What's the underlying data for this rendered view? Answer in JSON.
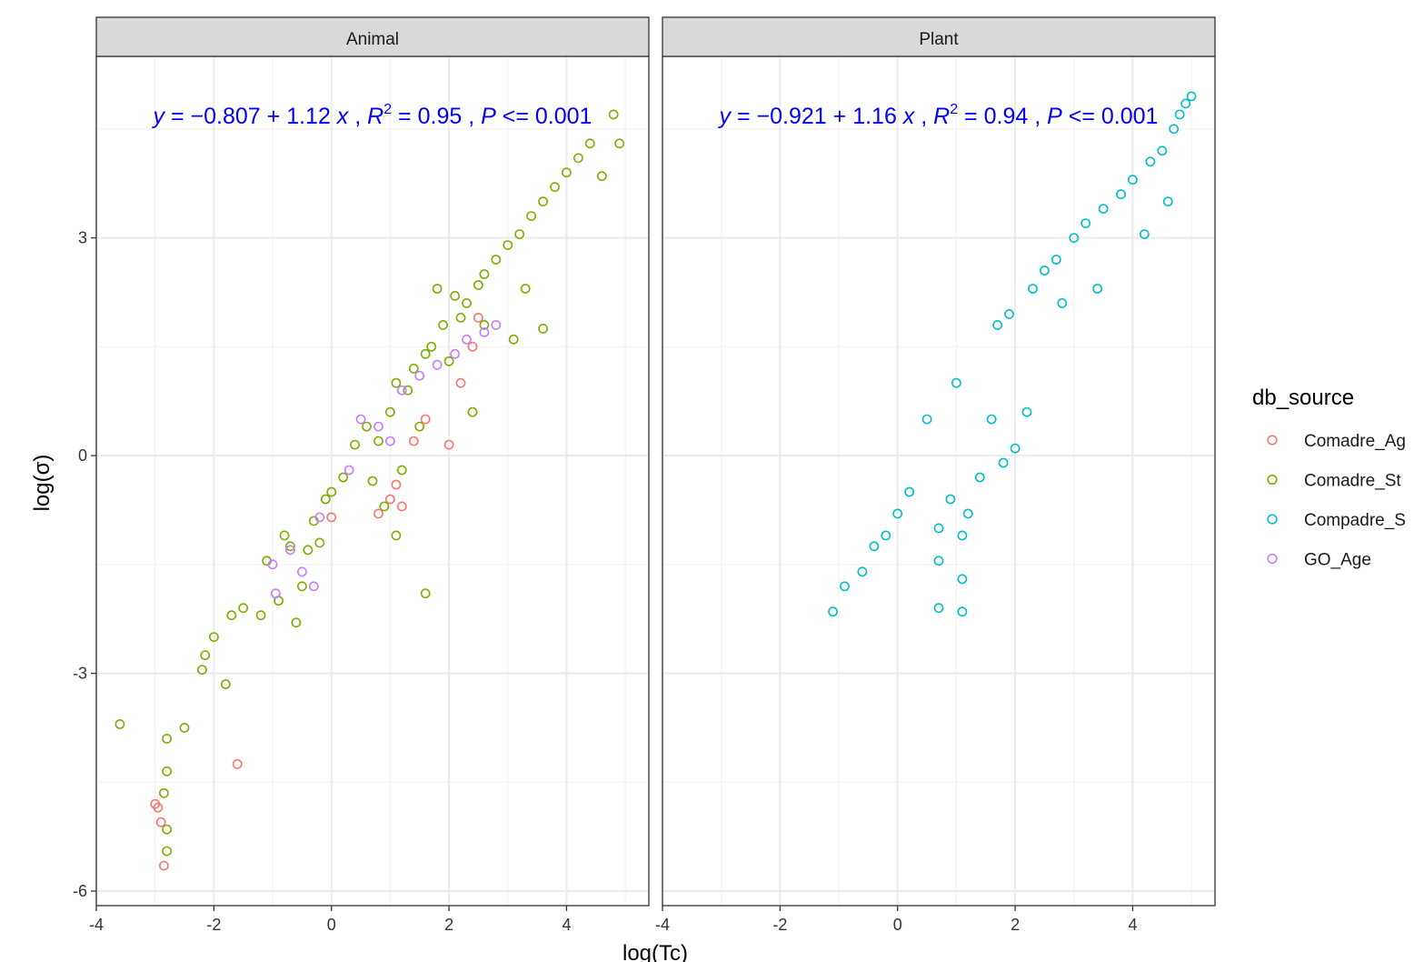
{
  "chart_data": {
    "type": "scatter",
    "xlabel": "log(Tc)",
    "ylabel": "log(σ)",
    "xlim": [
      -4,
      5.4
    ],
    "ylim": [
      -6.2,
      5.5
    ],
    "x_ticks": [
      "-4",
      "-2",
      "0",
      "2",
      "4"
    ],
    "y_ticks": [
      "3",
      "0",
      "-3",
      "-6"
    ],
    "grid": true,
    "legend": {
      "title": "db_source",
      "placement": "right",
      "entries": [
        "Comadre_Ag",
        "Comadre_St",
        "Compadre_S",
        "GO_Age"
      ]
    },
    "colors": {
      "Comadre_Age": "#F8766D",
      "Comadre_Stage": "#7CAE00",
      "Compadre_Stage": "#00BFC4",
      "GO_Age": "#C77CFF",
      "equation": "#0000FF",
      "strip": "#D9D9D9"
    },
    "panels": [
      {
        "strip": "Animal",
        "equation": {
          "intercept": "-0.807",
          "slope": "1.12",
          "r2": "0.95",
          "p": "0.001"
        },
        "series": [
          {
            "source": "Comadre_Stage",
            "points": [
              [
                -3.6,
                -3.7
              ],
              [
                -2.8,
                -3.9
              ],
              [
                -2.5,
                -3.75
              ],
              [
                -2.8,
                -4.35
              ],
              [
                -2.85,
                -4.65
              ],
              [
                -2.8,
                -5.15
              ],
              [
                -2.8,
                -5.45
              ],
              [
                -2.2,
                -2.95
              ],
              [
                -2.15,
                -2.75
              ],
              [
                -2,
                -2.5
              ],
              [
                -1.8,
                -3.15
              ],
              [
                -1.7,
                -2.2
              ],
              [
                -1.5,
                -2.1
              ],
              [
                -1.2,
                -2.2
              ],
              [
                -1.1,
                -1.45
              ],
              [
                -0.9,
                -2.0
              ],
              [
                -0.8,
                -1.1
              ],
              [
                -0.7,
                -1.25
              ],
              [
                -0.6,
                -2.3
              ],
              [
                -0.5,
                -1.8
              ],
              [
                -0.4,
                -1.3
              ],
              [
                -0.3,
                -0.9
              ],
              [
                -0.2,
                -1.2
              ],
              [
                -0.1,
                -0.6
              ],
              [
                0,
                -0.5
              ],
              [
                0.2,
                -0.3
              ],
              [
                0.4,
                0.15
              ],
              [
                0.6,
                0.4
              ],
              [
                0.8,
                0.2
              ],
              [
                0.9,
                -0.7
              ],
              [
                1.0,
                0.6
              ],
              [
                1.1,
                1.0
              ],
              [
                1.2,
                -0.2
              ],
              [
                1.3,
                0.9
              ],
              [
                1.4,
                1.2
              ],
              [
                1.5,
                0.4
              ],
              [
                1.6,
                -1.9
              ],
              [
                1.6,
                1.4
              ],
              [
                1.7,
                1.5
              ],
              [
                1.8,
                2.3
              ],
              [
                1.9,
                1.8
              ],
              [
                2.0,
                1.3
              ],
              [
                2.1,
                2.2
              ],
              [
                2.2,
                1.9
              ],
              [
                2.3,
                2.1
              ],
              [
                2.4,
                0.6
              ],
              [
                2.5,
                2.35
              ],
              [
                2.6,
                2.5
              ],
              [
                2.8,
                2.7
              ],
              [
                3.0,
                2.9
              ],
              [
                3.1,
                1.6
              ],
              [
                3.2,
                3.05
              ],
              [
                3.4,
                3.3
              ],
              [
                3.6,
                3.5
              ],
              [
                3.6,
                1.75
              ],
              [
                3.8,
                3.7
              ],
              [
                4.0,
                3.9
              ],
              [
                4.2,
                4.1
              ],
              [
                4.4,
                4.3
              ],
              [
                4.6,
                3.85
              ],
              [
                4.8,
                4.7
              ],
              [
                4.9,
                4.3
              ],
              [
                1.1,
                -1.1
              ],
              [
                0.7,
                -0.35
              ],
              [
                2.6,
                1.8
              ],
              [
                3.3,
                2.3
              ]
            ]
          },
          {
            "source": "Comadre_Age",
            "points": [
              [
                -3,
                -4.8
              ],
              [
                -2.95,
                -4.85
              ],
              [
                -2.9,
                -5.05
              ],
              [
                -2.85,
                -5.65
              ],
              [
                -1.6,
                -4.25
              ],
              [
                0,
                -0.85
              ],
              [
                0.8,
                -0.8
              ],
              [
                1.0,
                -0.6
              ],
              [
                1.1,
                -0.4
              ],
              [
                1.2,
                -0.7
              ],
              [
                1.4,
                0.2
              ],
              [
                1.6,
                0.5
              ],
              [
                2.0,
                0.15
              ],
              [
                2.2,
                1.0
              ],
              [
                2.4,
                1.5
              ],
              [
                2.5,
                1.9
              ]
            ]
          },
          {
            "source": "GO_Age",
            "points": [
              [
                -1.0,
                -1.5
              ],
              [
                -0.95,
                -1.9
              ],
              [
                -0.7,
                -1.3
              ],
              [
                -0.5,
                -1.6
              ],
              [
                -0.3,
                -1.8
              ],
              [
                -0.2,
                -0.85
              ],
              [
                0.3,
                -0.2
              ],
              [
                0.5,
                0.5
              ],
              [
                0.8,
                0.4
              ],
              [
                1.0,
                0.2
              ],
              [
                1.2,
                0.9
              ],
              [
                1.5,
                1.1
              ],
              [
                1.8,
                1.25
              ],
              [
                2.1,
                1.4
              ],
              [
                2.3,
                1.6
              ],
              [
                2.6,
                1.7
              ],
              [
                2.8,
                1.8
              ]
            ]
          }
        ]
      },
      {
        "strip": "Plant",
        "equation": {
          "intercept": "-0.921",
          "slope": "1.16",
          "r2": "0.94",
          "p": "0.001"
        },
        "series": [
          {
            "source": "Compadre_Stage",
            "points": [
              [
                -1.1,
                -2.15
              ],
              [
                -0.9,
                -1.8
              ],
              [
                -0.6,
                -1.6
              ],
              [
                -0.4,
                -1.25
              ],
              [
                -0.2,
                -1.1
              ],
              [
                0,
                -0.8
              ],
              [
                0.2,
                -0.5
              ],
              [
                0.5,
                0.5
              ],
              [
                0.7,
                -1.0
              ],
              [
                0.7,
                -1.45
              ],
              [
                0.7,
                -2.1
              ],
              [
                0.9,
                -0.6
              ],
              [
                1.0,
                1.0
              ],
              [
                1.1,
                -1.1
              ],
              [
                1.1,
                -1.7
              ],
              [
                1.1,
                -2.15
              ],
              [
                1.2,
                -0.8
              ],
              [
                1.4,
                -0.3
              ],
              [
                1.6,
                0.5
              ],
              [
                1.7,
                1.8
              ],
              [
                1.8,
                -0.1
              ],
              [
                1.9,
                1.95
              ],
              [
                2.0,
                0.1
              ],
              [
                2.2,
                0.6
              ],
              [
                2.3,
                2.3
              ],
              [
                2.5,
                2.55
              ],
              [
                2.7,
                2.7
              ],
              [
                2.8,
                2.1
              ],
              [
                3.0,
                3.0
              ],
              [
                3.2,
                3.2
              ],
              [
                3.4,
                2.3
              ],
              [
                3.5,
                3.4
              ],
              [
                3.8,
                3.6
              ],
              [
                4.0,
                3.8
              ],
              [
                4.2,
                3.05
              ],
              [
                4.3,
                4.05
              ],
              [
                4.5,
                4.2
              ],
              [
                4.6,
                3.5
              ],
              [
                4.7,
                4.5
              ],
              [
                4.8,
                4.7
              ],
              [
                4.9,
                4.85
              ],
              [
                5.0,
                4.95
              ]
            ]
          }
        ]
      }
    ]
  }
}
